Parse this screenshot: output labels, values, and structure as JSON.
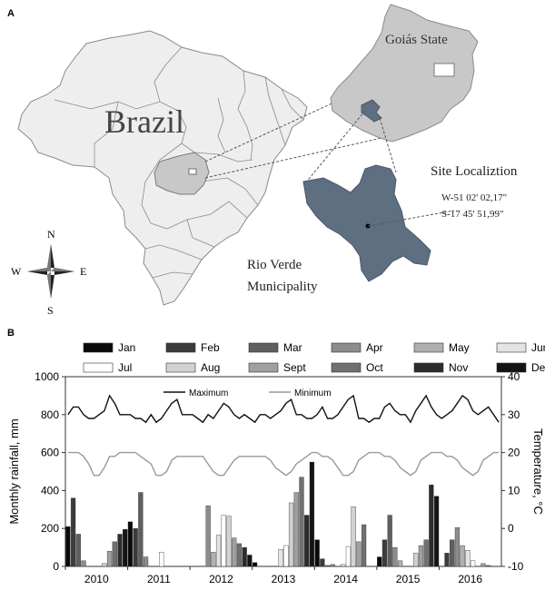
{
  "panel_a": {
    "letter": "A",
    "country_label": "Brazil",
    "state_label": "Goiás State",
    "site_title": "Site Localiztion",
    "site_lon": "W-51 02' 02,17\"",
    "site_lat": "S-17 45' 51,99\"",
    "municipality_line1": "Rio Verde",
    "municipality_line2": "Municipality",
    "compass": {
      "n": "N",
      "s": "S",
      "e": "E",
      "w": "W"
    },
    "colors": {
      "country": "#eeeeee",
      "state": "#c8c8c8",
      "municipality": "#5e6f82",
      "outline": "#8a8a8a"
    }
  },
  "panel_b": {
    "letter": "B",
    "legend_months": [
      {
        "label": "Jan",
        "color": "#0a0a0a"
      },
      {
        "label": "Feb",
        "color": "#3c3c3c"
      },
      {
        "label": "Mar",
        "color": "#5f5f5f"
      },
      {
        "label": "Apr",
        "color": "#8c8c8c"
      },
      {
        "label": "May",
        "color": "#b0b0b0"
      },
      {
        "label": "Jun",
        "color": "#e4e4e4"
      },
      {
        "label": "Jul",
        "color": "#ffffff"
      },
      {
        "label": "Aug",
        "color": "#d2d2d2"
      },
      {
        "label": "Sept",
        "color": "#a0a0a0"
      },
      {
        "label": "Oct",
        "color": "#707070"
      },
      {
        "label": "Nov",
        "color": "#2c2c2c"
      },
      {
        "label": "Dec",
        "color": "#141414"
      }
    ],
    "line_legend": {
      "max": "Maximum",
      "min": "Minimum"
    },
    "chart_data": {
      "type": "bar",
      "ylabel": "Monthly rainfall, mm",
      "y2label": "Temperature, °C",
      "ylim": [
        0,
        1000
      ],
      "y2lim": [
        -10,
        40
      ],
      "yticks": [
        "0",
        "200",
        "400",
        "600",
        "800",
        "1000"
      ],
      "y2ticks": [
        "-10",
        "0",
        "10",
        "20",
        "30",
        "40"
      ],
      "years": [
        "2010",
        "2011",
        "2012",
        "2013",
        "2014",
        "2015",
        "2016"
      ],
      "months": [
        "Jan",
        "Feb",
        "Mar",
        "Apr",
        "May",
        "Jun",
        "Jul",
        "Aug",
        "Sept",
        "Oct",
        "Nov",
        "Dec"
      ],
      "rainfall_start": "2010-01",
      "rainfall_mm": [
        210,
        360,
        170,
        30,
        0,
        0,
        0,
        15,
        80,
        130,
        170,
        195,
        235,
        200,
        390,
        50,
        0,
        0,
        75,
        0,
        0,
        0,
        0,
        0,
        0,
        0,
        0,
        320,
        75,
        165,
        270,
        265,
        150,
        120,
        100,
        60,
        20,
        0,
        0,
        0,
        0,
        90,
        110,
        335,
        390,
        470,
        270,
        550,
        140,
        40,
        5,
        10,
        0,
        10,
        105,
        315,
        130,
        220,
        0,
        0,
        50,
        140,
        270,
        100,
        30,
        0,
        0,
        70,
        110,
        140,
        430,
        370,
        0,
        70,
        140,
        205,
        110,
        85,
        30,
        0,
        15,
        5,
        0,
        0
      ],
      "rainfall_end_2016": [
        200,
        180,
        0,
        30,
        320,
        190,
        290,
        10,
        15,
        35,
        0,
        0
      ],
      "tmax_c": [
        30,
        32,
        32,
        30,
        29,
        29,
        30,
        31,
        35,
        33,
        30,
        30,
        30,
        29,
        29,
        28,
        30,
        28,
        29,
        31,
        33,
        34,
        30,
        30,
        30,
        29,
        28,
        30,
        29,
        31,
        33,
        32,
        30,
        29,
        30,
        29,
        28,
        30,
        30,
        29,
        30,
        31,
        33,
        34,
        30,
        30,
        29,
        29,
        30,
        32,
        29,
        29,
        30,
        32,
        34,
        35,
        29,
        29,
        28,
        29,
        29,
        32,
        33,
        31,
        30,
        30,
        28,
        31,
        33,
        35,
        32,
        30,
        29,
        30,
        31,
        33,
        35,
        34,
        31,
        30,
        31,
        32,
        30,
        28
      ],
      "tmin_c": [
        20,
        20,
        20,
        19,
        17,
        14,
        14,
        16,
        19,
        19,
        20,
        20,
        20,
        20,
        19,
        18,
        17,
        14,
        14,
        15,
        18,
        19,
        19,
        19,
        19,
        19,
        19,
        17,
        15,
        14,
        14,
        16,
        18,
        19,
        19,
        19,
        19,
        19,
        19,
        18,
        16,
        15,
        14,
        15,
        17,
        18,
        19,
        20,
        20,
        19,
        19,
        18,
        16,
        14,
        14,
        15,
        18,
        19,
        20,
        20,
        20,
        19,
        19,
        18,
        16,
        15,
        14,
        15,
        18,
        19,
        20,
        20,
        20,
        19,
        19,
        18,
        16,
        15,
        14,
        15,
        18,
        19,
        20,
        20
      ]
    }
  }
}
